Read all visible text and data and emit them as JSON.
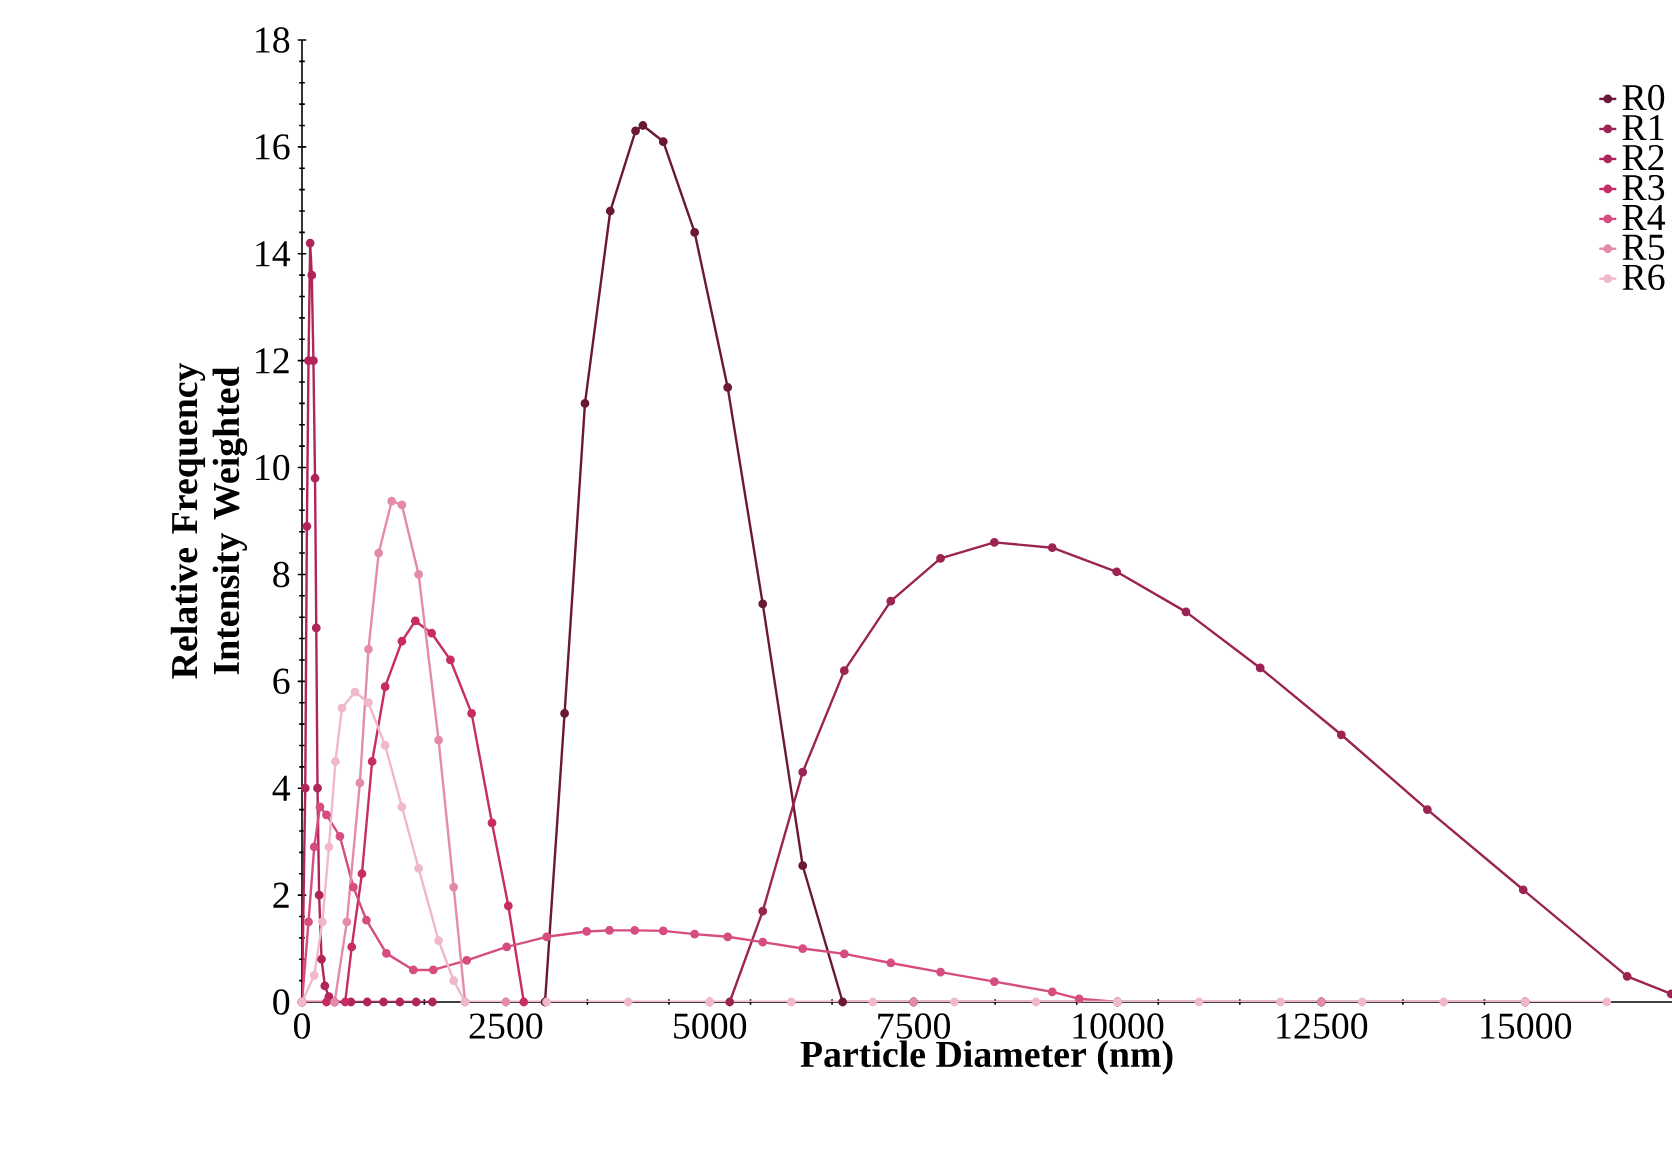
{
  "chart_data": {
    "type": "line",
    "xlabel": "Particle Diameter (nm)",
    "ylabel": "Relative Frequency Intensity Weighted",
    "xlim": [
      0,
      16800
    ],
    "ylim": [
      0,
      18
    ],
    "xticks": [
      0,
      2500,
      5000,
      7500,
      10000,
      12500,
      15000
    ],
    "yticks": [
      0,
      2,
      4,
      6,
      8,
      10,
      12,
      14,
      16,
      18
    ],
    "legend": "top right",
    "marker": "circle",
    "grid": false,
    "series": [
      {
        "name": "R0",
        "color": "#6b1838",
        "x": [
          2980,
          3220,
          3470,
          3780,
          4090,
          4180,
          4430,
          4815,
          5220,
          5650,
          6140,
          6630,
          7500,
          10000,
          12500,
          15000
        ],
        "values": [
          0,
          5.4,
          11.2,
          14.8,
          16.3,
          16.4,
          16.1,
          14.4,
          11.5,
          7.45,
          2.55,
          0,
          0,
          0,
          0,
          0
        ]
      },
      {
        "name": "R1",
        "color": "#9c2452",
        "x": [
          5245,
          5650,
          6140,
          6650,
          7220,
          7830,
          8490,
          9200,
          9990,
          10840,
          11750,
          12745,
          13800,
          14975,
          16250,
          16790
        ],
        "values": [
          0,
          1.7,
          4.3,
          6.2,
          7.5,
          8.3,
          8.6,
          8.5,
          8.05,
          7.3,
          6.25,
          5.0,
          3.6,
          2.1,
          0.48,
          0.15
        ]
      },
      {
        "name": "R2",
        "color": "#b0255a",
        "x": [
          0,
          40,
          60,
          80,
          100,
          120,
          140,
          160,
          175,
          190,
          210,
          240,
          280,
          330,
          400,
          600,
          800,
          1000,
          1200,
          1400,
          1600
        ],
        "values": [
          0,
          4,
          8.9,
          12,
          14.2,
          13.6,
          12,
          9.8,
          7.0,
          4.0,
          2.0,
          0.8,
          0.3,
          0.1,
          0,
          0,
          0,
          0,
          0,
          0,
          0
        ]
      },
      {
        "name": "R3",
        "color": "#c82c64",
        "x": [
          0,
          300,
          530,
          610,
          735,
          860,
          1020,
          1225,
          1390,
          1590,
          1820,
          2080,
          2330,
          2530,
          2720
        ],
        "values": [
          0,
          0,
          0,
          1.03,
          2.4,
          4.5,
          5.9,
          6.75,
          7.13,
          6.9,
          6.4,
          5.4,
          3.35,
          1.8,
          0
        ]
      },
      {
        "name": "R4",
        "color": "#d64d80",
        "x": [
          0,
          80,
          150,
          220,
          300,
          465,
          630,
          790,
          1035,
          1365,
          1610,
          2020,
          2510,
          3000,
          3490,
          3770,
          4080,
          4430,
          4815,
          5220,
          5650,
          6140,
          6650,
          7220,
          7830,
          8490,
          9200,
          9530,
          10000
        ],
        "values": [
          0,
          1.5,
          2.9,
          3.65,
          3.5,
          3.1,
          2.15,
          1.53,
          0.91,
          0.6,
          0.6,
          0.78,
          1.03,
          1.22,
          1.32,
          1.34,
          1.34,
          1.33,
          1.27,
          1.22,
          1.12,
          1.0,
          0.9,
          0.73,
          0.56,
          0.38,
          0.19,
          0.06,
          0
        ]
      },
      {
        "name": "R5",
        "color": "#e48aaa",
        "x": [
          0,
          400,
          550,
          710,
          815,
          940,
          1100,
          1225,
          1430,
          1675,
          1860,
          2000,
          2500,
          5000,
          7500,
          10000,
          12500,
          15000
        ],
        "values": [
          0,
          0,
          1.5,
          4.1,
          6.6,
          8.4,
          9.37,
          9.3,
          8.0,
          4.9,
          2.15,
          0,
          0,
          0,
          0,
          0,
          0,
          0
        ]
      },
      {
        "name": "R6",
        "color": "#f0b8cb",
        "x": [
          0,
          150,
          250,
          330,
          410,
          490,
          650,
          815,
          1020,
          1225,
          1430,
          1675,
          1860,
          2000,
          3000,
          4000,
          5000,
          6000,
          7000,
          8000,
          9000,
          10000,
          11000,
          12000,
          13000,
          14000,
          15000,
          16000
        ],
        "values": [
          0,
          0.5,
          1.5,
          2.9,
          4.5,
          5.5,
          5.8,
          5.6,
          4.8,
          3.65,
          2.5,
          1.15,
          0.4,
          0,
          0,
          0,
          0,
          0,
          0,
          0,
          0,
          0,
          0,
          0,
          0,
          0,
          0,
          0
        ]
      }
    ]
  }
}
